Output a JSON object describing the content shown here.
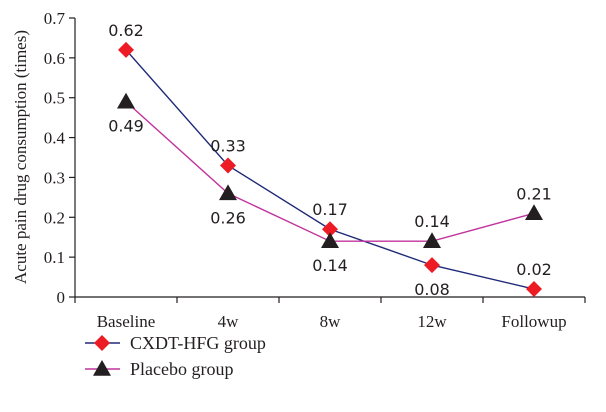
{
  "chart_data": {
    "type": "line",
    "categories": [
      "Baseline",
      "4w",
      "8w",
      "12w",
      "Followup"
    ],
    "ylabel": "Acute pain drug consumption (times)",
    "xlabel": "",
    "ylim": [
      0,
      0.7
    ],
    "yticks": [
      "0",
      "0.1",
      "0.2",
      "0.3",
      "0.4",
      "0.5",
      "0.6",
      "0.7"
    ],
    "grid": false,
    "legend_position": "bottom-left",
    "series": [
      {
        "name": "CXDT-HFG group",
        "values": [
          0.62,
          0.33,
          0.17,
          0.08,
          0.02
        ],
        "labels": [
          "0.62",
          "0.33",
          "0.17",
          "0.08",
          "0.02"
        ],
        "label_side": [
          "above",
          "above",
          "above",
          "below",
          "above"
        ],
        "line_color": "#1f2a78",
        "marker": "diamond",
        "marker_color": "#ed1c24"
      },
      {
        "name": "Placebo group",
        "values": [
          0.49,
          0.26,
          0.14,
          0.14,
          0.21
        ],
        "labels": [
          "0.49",
          "0.26",
          "0.14",
          "0.14",
          "0.21"
        ],
        "label_side": [
          "below",
          "below",
          "below",
          "above",
          "above"
        ],
        "line_color": "#c0359e",
        "marker": "triangle",
        "marker_color": "#231f20"
      }
    ]
  }
}
